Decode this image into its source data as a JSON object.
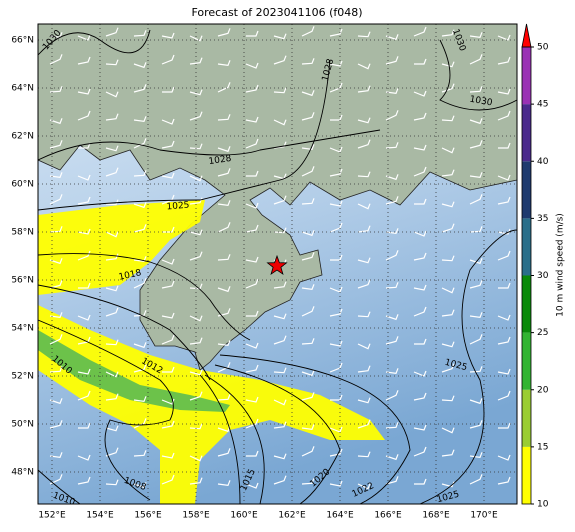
{
  "title": "Forecast of 2023041106 (f048)",
  "lon_labels": [
    "152°E",
    "154°E",
    "156°E",
    "158°E",
    "160°E",
    "162°E",
    "164°E",
    "166°E",
    "168°E",
    "170°E"
  ],
  "lat_labels": [
    "66°N",
    "64°N",
    "62°N",
    "60°N",
    "58°N",
    "56°N",
    "54°N",
    "52°N",
    "50°N",
    "48°N"
  ],
  "contour_labels": [
    "1030",
    "1030",
    "1028",
    "1030",
    "1028",
    "1025",
    "1018",
    "1010",
    "1012",
    "1025",
    "1008",
    "1015",
    "1020",
    "1022",
    "1025",
    "1010"
  ],
  "colorbar": {
    "label": "10 m wind speed (m/s)",
    "lim": [
      10,
      50
    ],
    "ticks": [
      10,
      15,
      20,
      25,
      30,
      35,
      40,
      45,
      50
    ],
    "colors": [
      "#ffff00",
      "#9acd32",
      "#32b432",
      "#0a8a0a",
      "#2a6f8a",
      "#1e3a6e",
      "#4a2a8c",
      "#9a32b4"
    ],
    "extend_color": "#ff0000"
  }
}
